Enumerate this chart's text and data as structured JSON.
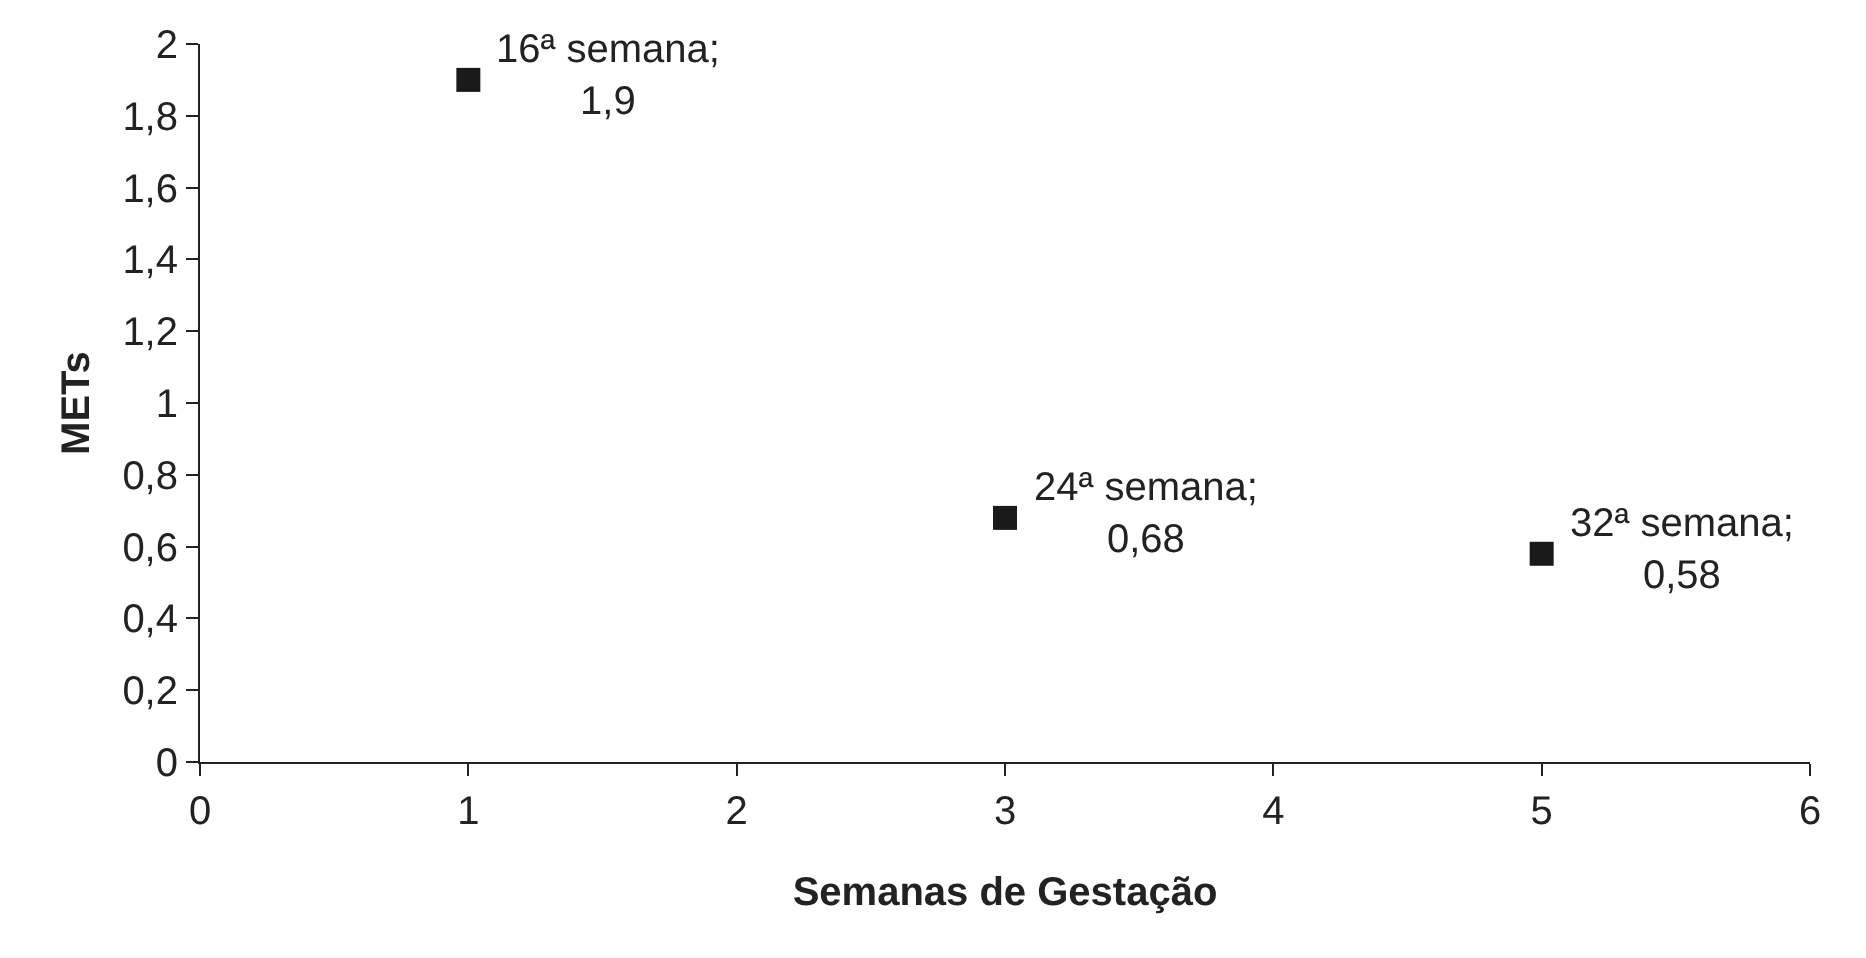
{
  "chart_data": {
    "type": "scatter",
    "xlabel": "Semanas de Gestação",
    "ylabel": "METs",
    "x": [
      1,
      3,
      5
    ],
    "values": [
      1.9,
      0.68,
      0.58
    ],
    "color": "#1a1a1a",
    "marker": "square",
    "xlim": [
      0,
      6
    ],
    "xticks": [
      0,
      1,
      2,
      3,
      4,
      5,
      6
    ],
    "ylim": [
      0,
      2
    ],
    "yticks": [
      0,
      {
        "value": 0.2,
        "label": "0,2"
      },
      {
        "value": 0.4,
        "label": "0,4"
      },
      {
        "value": 0.6,
        "label": "0,6"
      },
      {
        "value": 0.8,
        "label": "0,8"
      },
      1,
      {
        "value": 1.2,
        "label": "1,2"
      },
      {
        "value": 1.4,
        "label": "1,4"
      },
      {
        "value": 1.6,
        "label": "1,6"
      },
      {
        "value": 1.8,
        "label": "1,8"
      },
      2
    ],
    "annotations": [
      {
        "text": "16ª semana;\n1,9",
        "x": 1,
        "y": 1.9
      },
      {
        "text": "24ª semana;\n0,68",
        "x": 3,
        "y": 0.68
      },
      {
        "text": "32ª semana;\n0,58",
        "x": 5,
        "y": 0.58
      }
    ],
    "legend": false
  }
}
